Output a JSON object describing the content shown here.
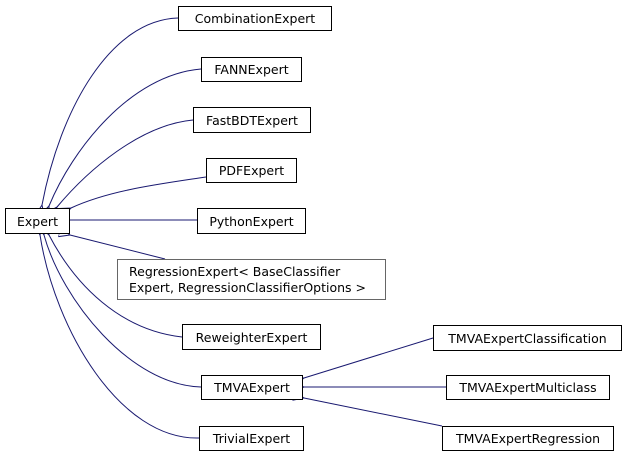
{
  "colors": {
    "edge": "#191970",
    "node_border": "#000000",
    "undocumented_border": "#666666"
  },
  "nodes": {
    "expert": "Expert",
    "combination": "CombinationExpert",
    "fann": "FANNExpert",
    "fastbdt": "FastBDTExpert",
    "pdf": "PDFExpert",
    "python": "PythonExpert",
    "regression": "RegressionExpert< BaseClassifier\nExpert, RegressionClassifierOptions >",
    "reweighter": "ReweighterExpert",
    "tmva": "TMVAExpert",
    "trivial": "TrivialExpert",
    "tmva_classification": "TMVAExpertClassification",
    "tmva_multiclass": "TMVAExpertMulticlass",
    "tmva_regression": "TMVAExpertRegression"
  },
  "edges": [
    [
      "combination",
      "expert"
    ],
    [
      "fann",
      "expert"
    ],
    [
      "fastbdt",
      "expert"
    ],
    [
      "pdf",
      "expert"
    ],
    [
      "python",
      "expert"
    ],
    [
      "regression",
      "expert"
    ],
    [
      "reweighter",
      "expert"
    ],
    [
      "tmva",
      "expert"
    ],
    [
      "trivial",
      "expert"
    ],
    [
      "tmva_classification",
      "tmva"
    ],
    [
      "tmva_multiclass",
      "tmva"
    ],
    [
      "tmva_regression",
      "tmva"
    ]
  ]
}
